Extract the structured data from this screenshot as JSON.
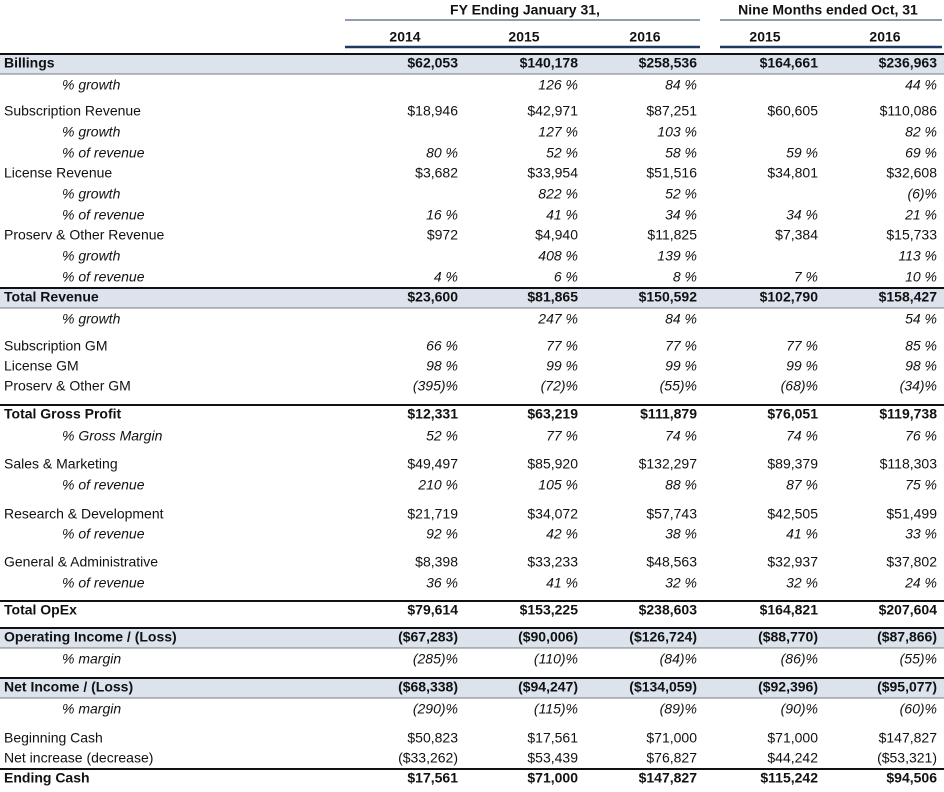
{
  "header": {
    "groups": [
      "FY Ending January 31,",
      "Nine Months ended Oct, 31"
    ],
    "years": [
      "2014",
      "2015",
      "2016",
      "2015",
      "2016"
    ]
  },
  "table": {
    "rows": [
      {
        "label": "Billings",
        "cells": [
          "$62,053",
          "$140,178",
          "$258,536",
          "$164,661",
          "$236,963"
        ]
      },
      {
        "label": "% growth",
        "cells": [
          null,
          "126 %",
          "84 %",
          null,
          "44 %"
        ]
      },
      {
        "label": "Subscription Revenue",
        "cells": [
          "$18,946",
          "$42,971",
          "$87,251",
          "$60,605",
          "$110,086"
        ]
      },
      {
        "label": "% growth",
        "cells": [
          null,
          "127 %",
          "103 %",
          null,
          "82 %"
        ]
      },
      {
        "label": "% of revenue",
        "cells": [
          "80 %",
          "52 %",
          "58 %",
          "59 %",
          "69 %"
        ]
      },
      {
        "label": "License Revenue",
        "cells": [
          "$3,682",
          "$33,954",
          "$51,516",
          "$34,801",
          "$32,608"
        ]
      },
      {
        "label": "% growth",
        "cells": [
          null,
          "822 %",
          "52 %",
          null,
          "(6)%"
        ]
      },
      {
        "label": "% of revenue",
        "cells": [
          "16 %",
          "41 %",
          "34 %",
          "34 %",
          "21 %"
        ]
      },
      {
        "label": "Proserv & Other Revenue",
        "cells": [
          "$972",
          "$4,940",
          "$11,825",
          "$7,384",
          "$15,733"
        ]
      },
      {
        "label": "% growth",
        "cells": [
          null,
          "408 %",
          "139 %",
          null,
          "113 %"
        ]
      },
      {
        "label": "% of revenue",
        "cells": [
          "4 %",
          "6 %",
          "8 %",
          "7 %",
          "10 %"
        ]
      },
      {
        "label": "Total Revenue",
        "cells": [
          "$23,600",
          "$81,865",
          "$150,592",
          "$102,790",
          "$158,427"
        ]
      },
      {
        "label": "% growth",
        "cells": [
          null,
          "247 %",
          "84 %",
          null,
          "54 %"
        ]
      },
      {
        "label": "Subscription GM",
        "cells": [
          "66 %",
          "77 %",
          "77 %",
          "77 %",
          "85 %"
        ]
      },
      {
        "label": "License GM",
        "cells": [
          "98 %",
          "99 %",
          "99 %",
          "99 %",
          "98 %"
        ]
      },
      {
        "label": "Proserv & Other GM",
        "cells": [
          "(395)%",
          "(72)%",
          "(55)%",
          "(68)%",
          "(34)%"
        ]
      },
      {
        "label": "Total Gross Profit",
        "cells": [
          "$12,331",
          "$63,219",
          "$111,879",
          "$76,051",
          "$119,738"
        ]
      },
      {
        "label": "% Gross Margin",
        "cells": [
          "52 %",
          "77 %",
          "74 %",
          "74 %",
          "76 %"
        ]
      },
      {
        "label": "Sales & Marketing",
        "cells": [
          "$49,497",
          "$85,920",
          "$132,297",
          "$89,379",
          "$118,303"
        ]
      },
      {
        "label": "% of revenue",
        "cells": [
          "210 %",
          "105 %",
          "88 %",
          "87 %",
          "75 %"
        ]
      },
      {
        "label": "Research & Development",
        "cells": [
          "$21,719",
          "$34,072",
          "$57,743",
          "$42,505",
          "$51,499"
        ]
      },
      {
        "label": "% of revenue",
        "cells": [
          "92 %",
          "42 %",
          "38 %",
          "41 %",
          "33 %"
        ]
      },
      {
        "label": "General & Administrative",
        "cells": [
          "$8,398",
          "$33,233",
          "$48,563",
          "$32,937",
          "$37,802"
        ]
      },
      {
        "label": "% of revenue",
        "cells": [
          "36 %",
          "41 %",
          "32 %",
          "32 %",
          "24 %"
        ]
      },
      {
        "label": "Total OpEx",
        "cells": [
          "$79,614",
          "$153,225",
          "$238,603",
          "$164,821",
          "$207,604"
        ]
      },
      {
        "label": "Operating Income / (Loss)",
        "cells": [
          "($67,283)",
          "($90,006)",
          "($126,724)",
          "($88,770)",
          "($87,866)"
        ]
      },
      {
        "label": "% margin",
        "cells": [
          "(285)%",
          "(110)%",
          "(84)%",
          "(86)%",
          "(55)%"
        ]
      },
      {
        "label": "Net Income / (Loss)",
        "cells": [
          "($68,338)",
          "($94,247)",
          "($134,059)",
          "($92,396)",
          "($95,077)"
        ]
      },
      {
        "label": "% margin",
        "cells": [
          "(290)%",
          "(115)%",
          "(89)%",
          "(90)%",
          "(60)%"
        ]
      },
      {
        "label": "Beginning Cash",
        "cells": [
          "$50,823",
          "$17,561",
          "$71,000",
          "$71,000",
          "$147,827"
        ]
      },
      {
        "label": "Net increase (decrease)",
        "cells": [
          "($33,262)",
          "$53,439",
          "$76,827",
          "$44,242",
          "($53,321)"
        ]
      },
      {
        "label": "Ending Cash",
        "cells": [
          "$17,561",
          "$71,000",
          "$147,827",
          "$115,242",
          "$94,506"
        ]
      }
    ]
  }
}
